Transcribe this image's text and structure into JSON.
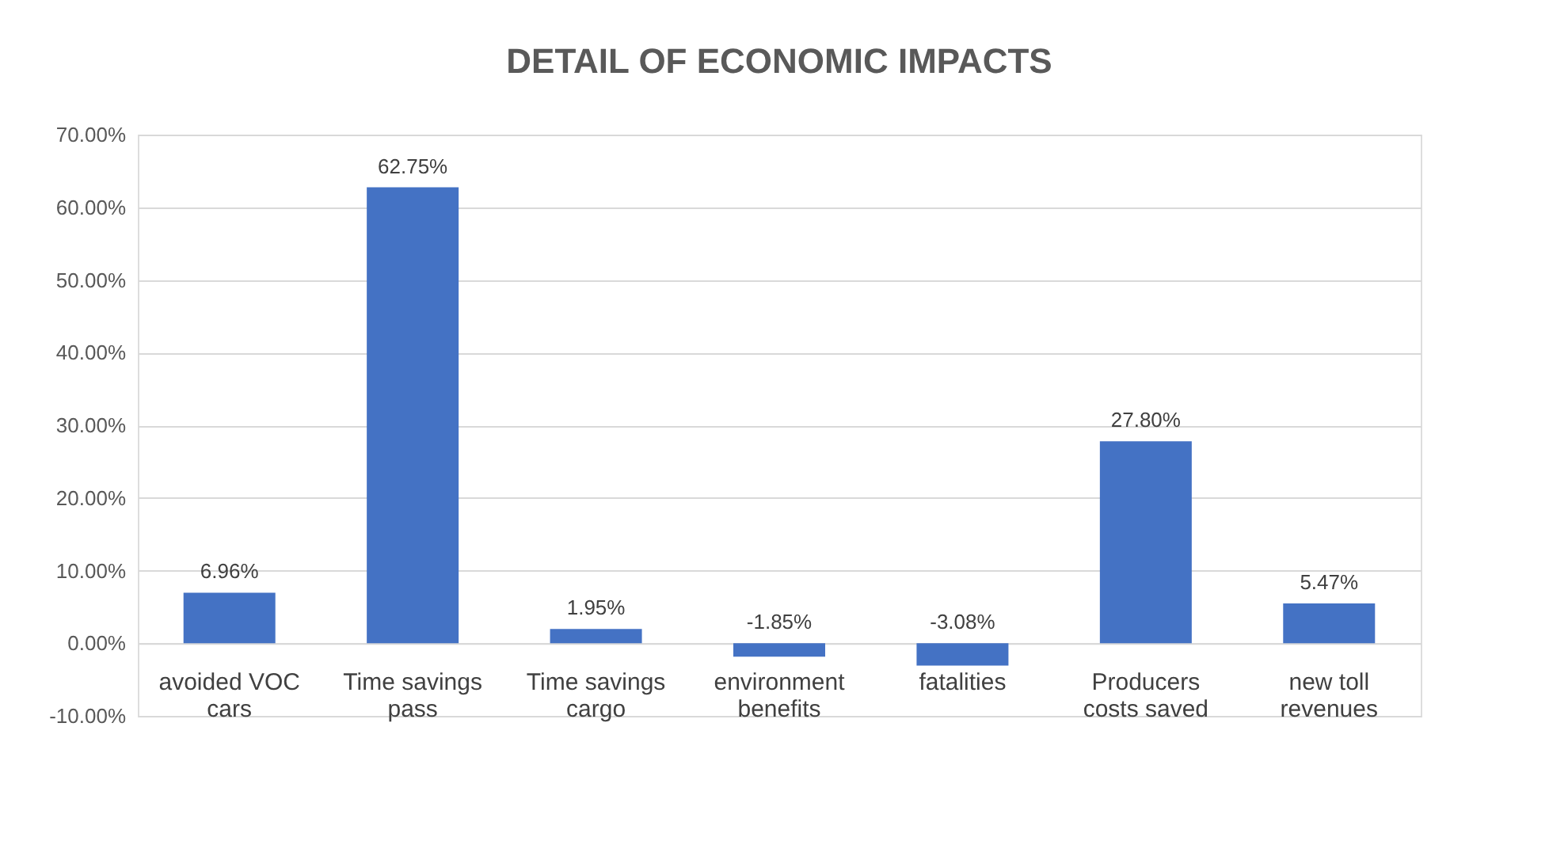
{
  "chart_data": {
    "type": "bar",
    "title": "DETAIL OF ECONOMIC IMPACTS",
    "categories": [
      "avoided VOC cars",
      "Time savings pass",
      "Time savings cargo",
      "environment benefits",
      "fatalities",
      "Producers costs saved",
      "new toll revenues"
    ],
    "values": [
      6.96,
      62.75,
      1.95,
      -1.85,
      -3.08,
      27.8,
      5.47
    ],
    "value_labels": [
      "6.96%",
      "62.75%",
      "1.95%",
      "-1.85%",
      "-3.08%",
      "27.80%",
      "5.47%"
    ],
    "color": "#4472c4",
    "ylim": [
      -10,
      70
    ],
    "yticks": [
      {
        "value": -10,
        "label": "-10.00%"
      },
      {
        "value": 0,
        "label": "0.00%"
      },
      {
        "value": 10,
        "label": "10.00%"
      },
      {
        "value": 20,
        "label": "20.00%"
      },
      {
        "value": 30,
        "label": "30.00%"
      },
      {
        "value": 40,
        "label": "40.00%"
      },
      {
        "value": 50,
        "label": "50.00%"
      },
      {
        "value": 60,
        "label": "60.00%"
      },
      {
        "value": 70,
        "label": "70.00%"
      }
    ],
    "grid": "y"
  }
}
